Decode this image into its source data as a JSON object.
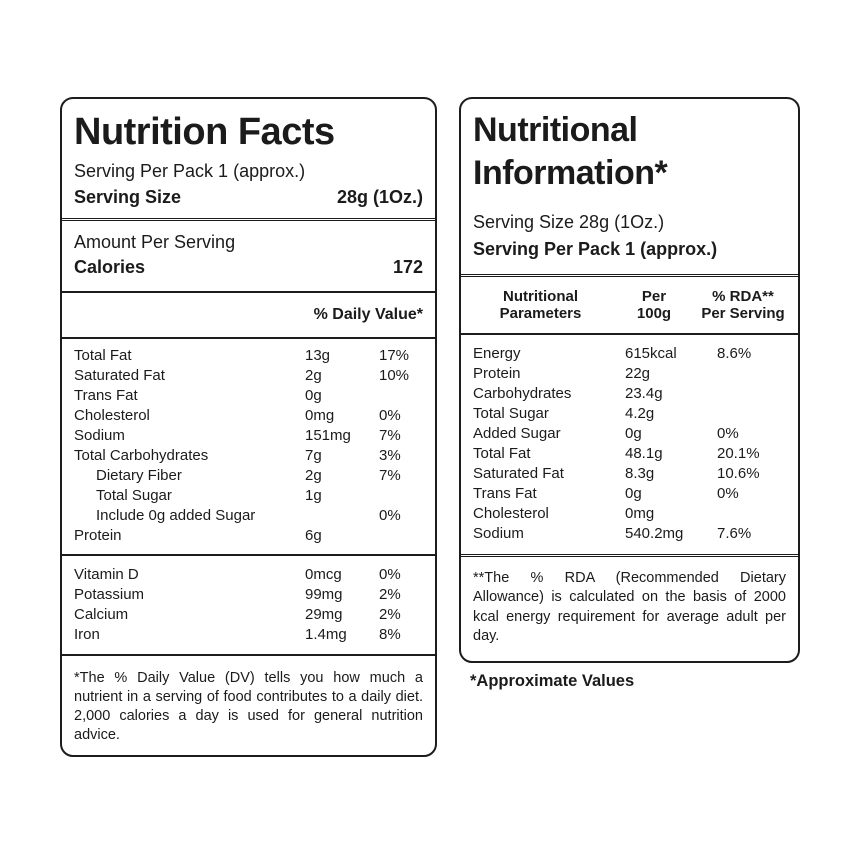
{
  "page": {
    "background": "#ffffff",
    "text_color": "#1b1b1b",
    "border_color": "#1c1c1c"
  },
  "left_panel": {
    "title": "Nutrition Facts",
    "serving_per_pack": "Serving Per Pack 1 (approx.)",
    "serving_size_label": "Serving Size",
    "serving_size_value": "28g (1Oz.)",
    "amount_per_serving": "Amount Per Serving",
    "calories_label": "Calories",
    "calories_value": "172",
    "daily_value_header": "% Daily Value*",
    "nutrients": [
      {
        "name": "Total Fat",
        "amount": "13g",
        "dv": "17%"
      },
      {
        "name": "Saturated Fat",
        "amount": "2g",
        "dv": "10%"
      },
      {
        "name": "Trans Fat",
        "amount": "0g",
        "dv": ""
      },
      {
        "name": "Cholesterol",
        "amount": "0mg",
        "dv": "0%"
      },
      {
        "name": "Sodium",
        "amount": "151mg",
        "dv": "7%"
      },
      {
        "name": "Total Carbohydrates",
        "amount": "7g",
        "dv": "3%"
      },
      {
        "name": "Dietary Fiber",
        "amount": "2g",
        "dv": "7%"
      },
      {
        "name": "Total Sugar",
        "amount": "1g",
        "dv": ""
      },
      {
        "name": "Include 0g added Sugar",
        "amount": "",
        "dv": "0%"
      },
      {
        "name": "Protein",
        "amount": "6g",
        "dv": ""
      }
    ],
    "micronutrients": [
      {
        "name": "Vitamin D",
        "amount": "0mcg",
        "dv": "0%"
      },
      {
        "name": "Potassium",
        "amount": "99mg",
        "dv": "2%"
      },
      {
        "name": "Calcium",
        "amount": "29mg",
        "dv": "2%"
      },
      {
        "name": "Iron",
        "amount": "1.4mg",
        "dv": "8%"
      }
    ],
    "footnote": "*The % Daily Value (DV) tells you how much a nutrient in a serving of food contributes to a daily diet. 2,000 calories a day is used for general nutrition advice."
  },
  "right_panel": {
    "title": "Nutritional\nInformation*",
    "serving_size": "Serving Size 28g (1Oz.)",
    "serving_per_pack": "Serving Per Pack 1 (approx.)",
    "table_header": {
      "col1": "Nutritional\nParameters",
      "col2": "Per\n100g",
      "col3": "% RDA**\nPer Serving"
    },
    "rows": [
      {
        "name": "Energy",
        "per_100g": "615kcal",
        "rda": "8.6%"
      },
      {
        "name": "Protein",
        "per_100g": "22g",
        "rda": ""
      },
      {
        "name": "Carbohydrates",
        "per_100g": "23.4g",
        "rda": ""
      },
      {
        "name": "Total Sugar",
        "per_100g": "4.2g",
        "rda": ""
      },
      {
        "name": "Added Sugar",
        "per_100g": "0g",
        "rda": "0%"
      },
      {
        "name": "Total Fat",
        "per_100g": "48.1g",
        "rda": "20.1%"
      },
      {
        "name": "Saturated Fat",
        "per_100g": "8.3g",
        "rda": "10.6%"
      },
      {
        "name": "Trans Fat",
        "per_100g": "0g",
        "rda": "0%"
      },
      {
        "name": "Cholesterol",
        "per_100g": "0mg",
        "rda": ""
      },
      {
        "name": "Sodium",
        "per_100g": "540.2mg",
        "rda": "7.6%"
      }
    ],
    "footnote": "**The % RDA (Recommended Dietary Allowance) is calculated on the basis of 2000 kcal energy requirement for average adult per day.",
    "approximate_values_note": "*Approximate Values"
  }
}
